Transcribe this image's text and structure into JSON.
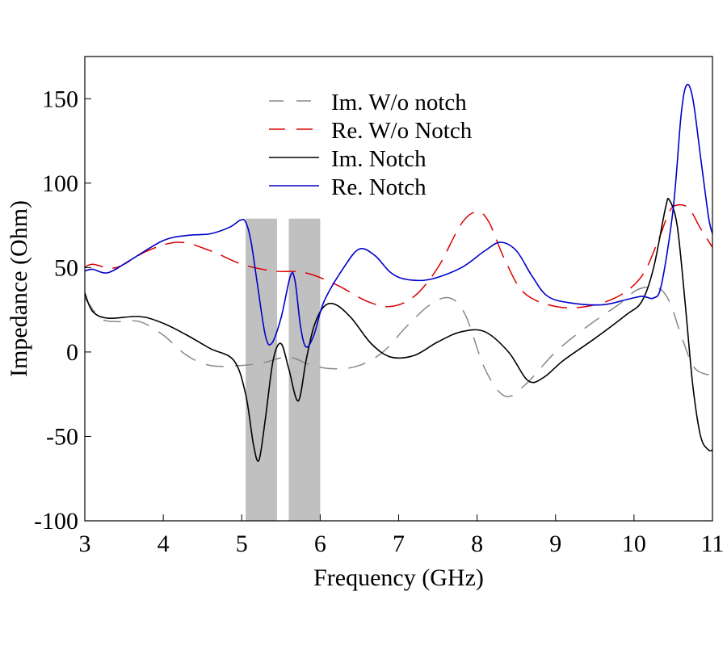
{
  "chart_data": {
    "type": "line",
    "title": "",
    "xlabel": "Frequency (GHz)",
    "ylabel": "Impedance (Ohm)",
    "xlim": [
      3,
      11
    ],
    "ylim": [
      -100,
      175
    ],
    "xticks": [
      3,
      4,
      5,
      6,
      7,
      8,
      9,
      10,
      11
    ],
    "yticks": [
      -100,
      -50,
      0,
      50,
      100,
      150
    ],
    "grid": false,
    "legend_position": "top-center",
    "notch_bands": [
      {
        "x0": 5.05,
        "x1": 5.45
      },
      {
        "x0": 5.6,
        "x1": 6.0
      }
    ],
    "band_color": "#c0c0c0",
    "series": [
      {
        "name": "Im. W/o notch",
        "color": "#888888",
        "dash": "dash-gray",
        "points": [
          [
            3.0,
            32
          ],
          [
            3.2,
            20
          ],
          [
            3.4,
            18
          ],
          [
            3.7,
            18
          ],
          [
            4.0,
            10
          ],
          [
            4.3,
            -2
          ],
          [
            4.6,
            -8
          ],
          [
            5.0,
            -8
          ],
          [
            5.3,
            -6
          ],
          [
            5.6,
            -3
          ],
          [
            5.9,
            -8
          ],
          [
            6.2,
            -10
          ],
          [
            6.5,
            -8
          ],
          [
            6.8,
            0
          ],
          [
            7.1,
            15
          ],
          [
            7.4,
            28
          ],
          [
            7.65,
            32
          ],
          [
            7.85,
            22
          ],
          [
            8.1,
            -10
          ],
          [
            8.35,
            -26
          ],
          [
            8.6,
            -20
          ],
          [
            9.0,
            0
          ],
          [
            9.4,
            15
          ],
          [
            9.8,
            28
          ],
          [
            10.05,
            37
          ],
          [
            10.3,
            38
          ],
          [
            10.45,
            30
          ],
          [
            10.6,
            10
          ],
          [
            10.75,
            -8
          ],
          [
            10.9,
            -13
          ],
          [
            11.0,
            -13
          ]
        ]
      },
      {
        "name": "Re. W/o Notch",
        "color": "#dd0000",
        "dash": "dash-red",
        "points": [
          [
            3.0,
            50
          ],
          [
            3.1,
            52
          ],
          [
            3.4,
            50
          ],
          [
            3.8,
            60
          ],
          [
            4.2,
            65
          ],
          [
            4.6,
            60
          ],
          [
            5.0,
            52
          ],
          [
            5.4,
            48
          ],
          [
            5.8,
            47
          ],
          [
            6.2,
            40
          ],
          [
            6.6,
            30
          ],
          [
            6.9,
            27
          ],
          [
            7.2,
            33
          ],
          [
            7.5,
            50
          ],
          [
            7.8,
            76
          ],
          [
            8.0,
            83
          ],
          [
            8.15,
            77
          ],
          [
            8.35,
            55
          ],
          [
            8.6,
            35
          ],
          [
            9.0,
            27
          ],
          [
            9.4,
            27
          ],
          [
            9.8,
            33
          ],
          [
            10.1,
            45
          ],
          [
            10.3,
            65
          ],
          [
            10.45,
            83
          ],
          [
            10.55,
            87
          ],
          [
            10.7,
            85
          ],
          [
            10.85,
            73
          ],
          [
            11.0,
            62
          ]
        ]
      },
      {
        "name": "Im. Notch",
        "color": "#000000",
        "dash": "solid",
        "points": [
          [
            3.0,
            35
          ],
          [
            3.1,
            24
          ],
          [
            3.3,
            20
          ],
          [
            3.7,
            21
          ],
          [
            4.0,
            17
          ],
          [
            4.3,
            10
          ],
          [
            4.6,
            2
          ],
          [
            4.9,
            -5
          ],
          [
            5.05,
            -25
          ],
          [
            5.15,
            -55
          ],
          [
            5.22,
            -64
          ],
          [
            5.3,
            -40
          ],
          [
            5.4,
            -5
          ],
          [
            5.5,
            5
          ],
          [
            5.6,
            -10
          ],
          [
            5.72,
            -29
          ],
          [
            5.82,
            -5
          ],
          [
            5.92,
            15
          ],
          [
            6.05,
            27
          ],
          [
            6.2,
            28
          ],
          [
            6.4,
            20
          ],
          [
            6.65,
            5
          ],
          [
            6.9,
            -3
          ],
          [
            7.2,
            -2
          ],
          [
            7.5,
            6
          ],
          [
            7.8,
            12
          ],
          [
            8.1,
            12
          ],
          [
            8.4,
            0
          ],
          [
            8.65,
            -17
          ],
          [
            8.85,
            -15
          ],
          [
            9.1,
            -5
          ],
          [
            9.5,
            8
          ],
          [
            9.9,
            22
          ],
          [
            10.1,
            30
          ],
          [
            10.25,
            50
          ],
          [
            10.4,
            85
          ],
          [
            10.45,
            90
          ],
          [
            10.55,
            75
          ],
          [
            10.65,
            30
          ],
          [
            10.75,
            -20
          ],
          [
            10.85,
            -50
          ],
          [
            10.95,
            -58
          ],
          [
            11.0,
            -58
          ]
        ]
      },
      {
        "name": "Re. Notch",
        "color": "#0000cc",
        "dash": "solid",
        "points": [
          [
            3.0,
            48
          ],
          [
            3.1,
            49
          ],
          [
            3.3,
            47
          ],
          [
            3.6,
            55
          ],
          [
            4.0,
            66
          ],
          [
            4.3,
            69
          ],
          [
            4.6,
            70
          ],
          [
            4.85,
            74
          ],
          [
            4.98,
            78
          ],
          [
            5.05,
            77
          ],
          [
            5.12,
            65
          ],
          [
            5.2,
            40
          ],
          [
            5.3,
            10
          ],
          [
            5.38,
            5
          ],
          [
            5.5,
            20
          ],
          [
            5.62,
            45
          ],
          [
            5.68,
            42
          ],
          [
            5.75,
            15
          ],
          [
            5.82,
            3
          ],
          [
            5.92,
            10
          ],
          [
            6.05,
            30
          ],
          [
            6.3,
            50
          ],
          [
            6.5,
            61
          ],
          [
            6.7,
            57
          ],
          [
            6.9,
            47
          ],
          [
            7.1,
            43
          ],
          [
            7.4,
            43
          ],
          [
            7.8,
            50
          ],
          [
            8.1,
            60
          ],
          [
            8.3,
            65
          ],
          [
            8.5,
            60
          ],
          [
            8.7,
            45
          ],
          [
            8.9,
            33
          ],
          [
            9.2,
            29
          ],
          [
            9.6,
            28
          ],
          [
            9.9,
            31
          ],
          [
            10.1,
            33
          ],
          [
            10.25,
            32
          ],
          [
            10.35,
            40
          ],
          [
            10.5,
            85
          ],
          [
            10.6,
            140
          ],
          [
            10.67,
            158
          ],
          [
            10.75,
            150
          ],
          [
            10.85,
            115
          ],
          [
            10.95,
            80
          ],
          [
            11.0,
            70
          ]
        ]
      }
    ]
  }
}
